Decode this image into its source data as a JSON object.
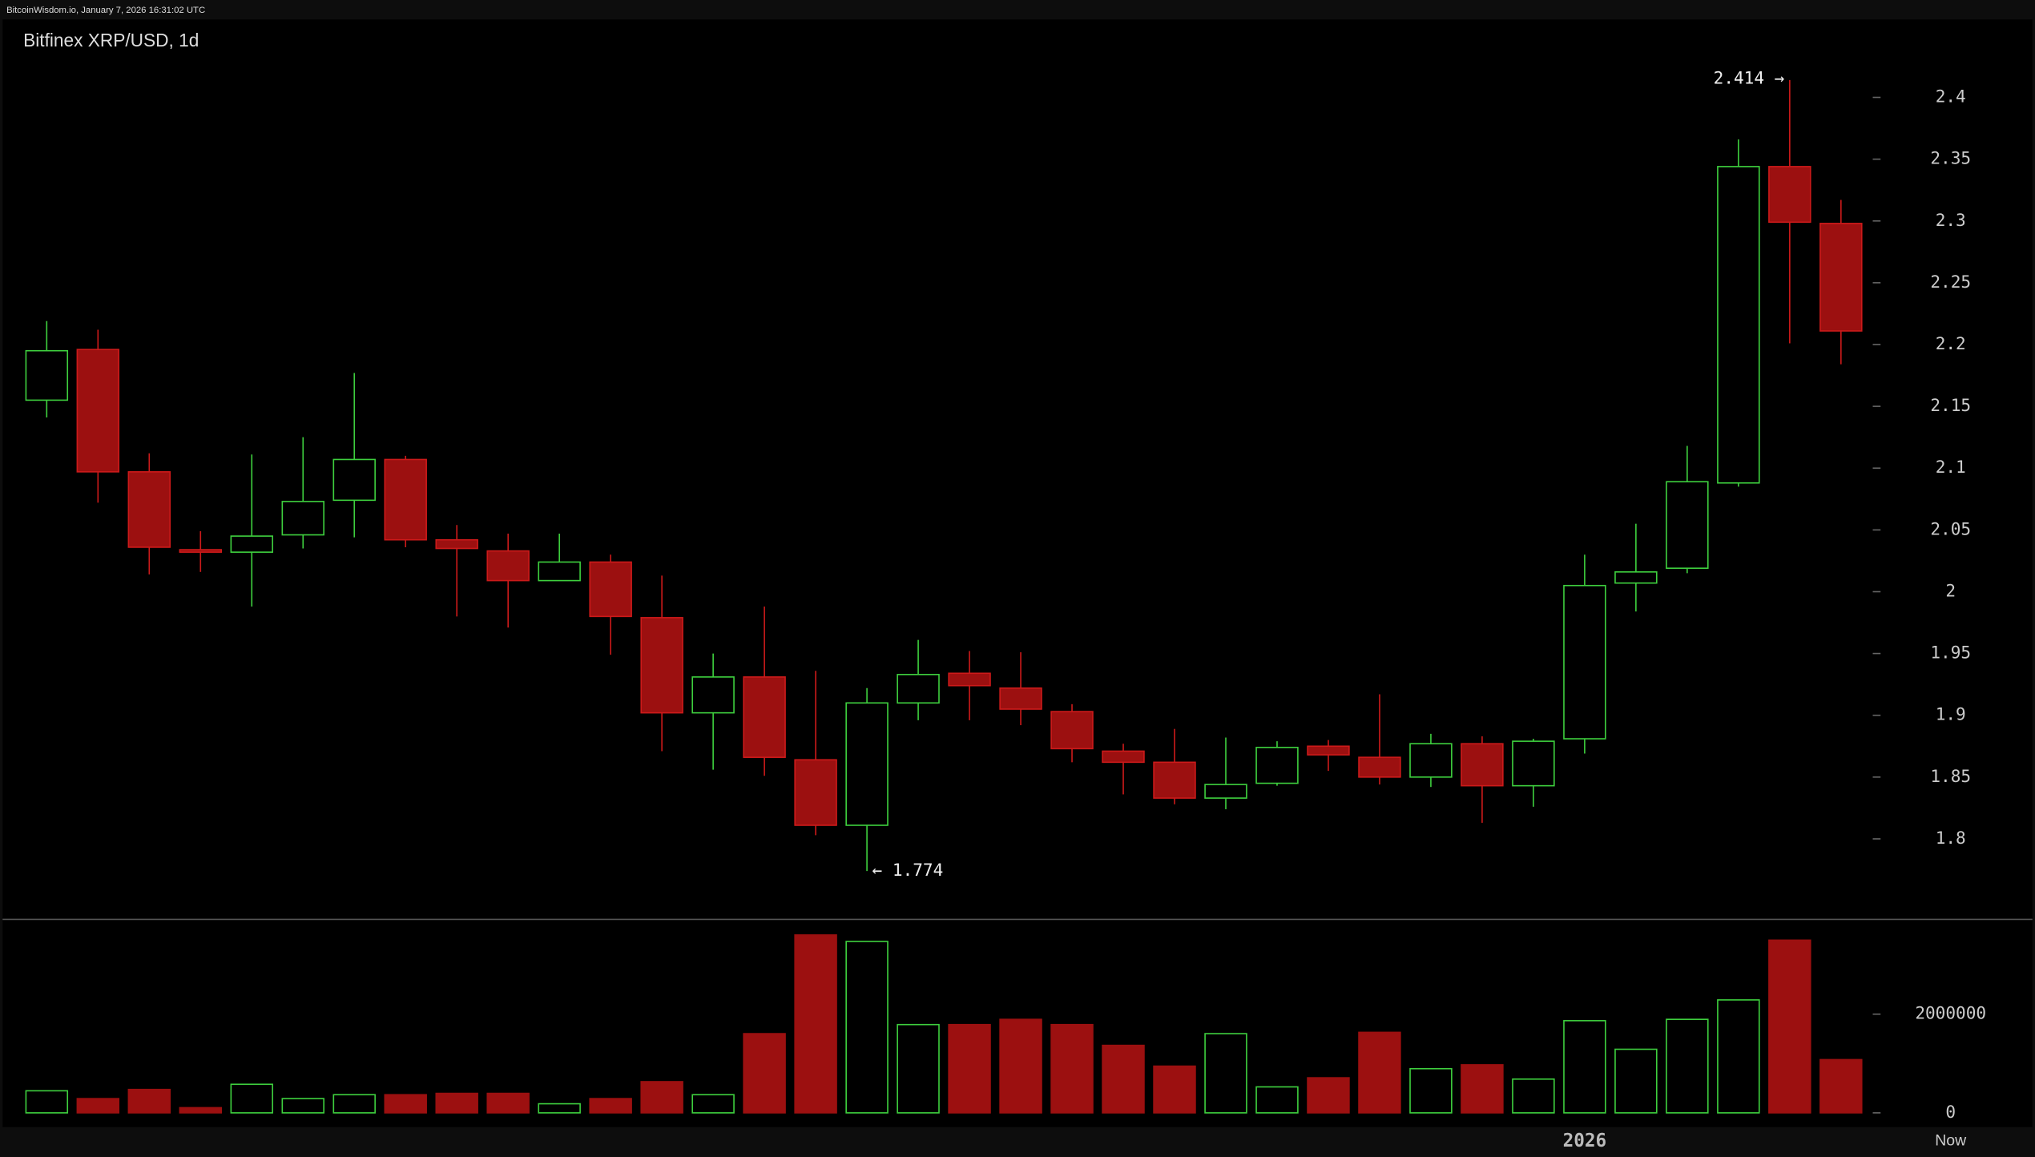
{
  "chart_data": {
    "type": "candlestick",
    "header": "BitcoinWisdom.io, January 7, 2026 16:31:02 UTC",
    "title": "Bitfinex XRP/USD, 1d",
    "categories": [
      null,
      null,
      null,
      null,
      null,
      null,
      null,
      null,
      null,
      null,
      null,
      null,
      null,
      null,
      null,
      null,
      null,
      null,
      null,
      null,
      null,
      null,
      null,
      null,
      null,
      null,
      null,
      null,
      null,
      null,
      "2026",
      null,
      null,
      null,
      null,
      null
    ],
    "end_label": "Now",
    "open": [
      2.155,
      2.196,
      2.097,
      2.034,
      2.032,
      2.046,
      2.074,
      2.107,
      2.042,
      2.033,
      2.009,
      2.024,
      1.979,
      1.902,
      1.931,
      1.864,
      1.811,
      1.91,
      1.934,
      1.922,
      1.903,
      1.871,
      1.862,
      1.833,
      1.845,
      1.875,
      1.866,
      1.85,
      1.877,
      1.843,
      1.881,
      2.007,
      2.019,
      2.088,
      2.344,
      2.298
    ],
    "high": [
      2.219,
      2.212,
      2.112,
      2.049,
      2.111,
      2.125,
      2.177,
      2.11,
      2.054,
      2.047,
      2.047,
      2.03,
      2.013,
      1.95,
      1.988,
      1.936,
      1.922,
      1.961,
      1.952,
      1.951,
      1.909,
      1.877,
      1.889,
      1.882,
      1.879,
      1.88,
      1.917,
      1.885,
      1.883,
      1.881,
      2.03,
      2.055,
      2.118,
      2.366,
      2.414,
      2.317
    ],
    "low": [
      2.141,
      2.072,
      2.014,
      2.016,
      1.988,
      2.035,
      2.044,
      2.036,
      1.98,
      1.971,
      2.009,
      1.949,
      1.871,
      1.856,
      1.851,
      1.803,
      1.774,
      1.896,
      1.896,
      1.892,
      1.862,
      1.836,
      1.828,
      1.824,
      1.843,
      1.855,
      1.844,
      1.842,
      1.813,
      1.826,
      1.869,
      1.984,
      2.015,
      2.085,
      2.201,
      2.184
    ],
    "close": [
      2.195,
      2.097,
      2.036,
      2.032,
      2.045,
      2.073,
      2.107,
      2.042,
      2.035,
      2.009,
      2.024,
      1.98,
      1.902,
      1.931,
      1.866,
      1.811,
      1.91,
      1.933,
      1.924,
      1.905,
      1.873,
      1.862,
      1.833,
      1.844,
      1.874,
      1.868,
      1.85,
      1.877,
      1.843,
      1.879,
      2.005,
      2.016,
      2.089,
      2.344,
      2.299,
      2.211
    ],
    "volume": [
      447000,
      289000,
      474000,
      105000,
      579000,
      289000,
      368000,
      368000,
      395000,
      395000,
      184000,
      289000,
      632000,
      368000,
      1605000,
      3605000,
      3474000,
      1789000,
      1789000,
      1895000,
      1789000,
      1368000,
      947000,
      1605000,
      526000,
      711000,
      1632000,
      895000,
      974000,
      684000,
      1868000,
      1289000,
      1895000,
      2289000,
      3500000,
      1079000
    ],
    "max_label": "2.414 →",
    "min_label": "← 1.774",
    "up_color": "#3ecf3e",
    "down_color": "#9c1010",
    "down_stroke": "#cc1a1a",
    "ylim": [
      1.75,
      2.45
    ],
    "yticks": [
      1.8,
      1.85,
      1.9,
      1.95,
      2,
      2.05,
      2.1,
      2.15,
      2.2,
      2.25,
      2.3,
      2.35,
      2.4
    ],
    "volume_ylim": [
      0,
      4000000
    ],
    "volume_yticks": [
      0,
      2000000
    ]
  }
}
